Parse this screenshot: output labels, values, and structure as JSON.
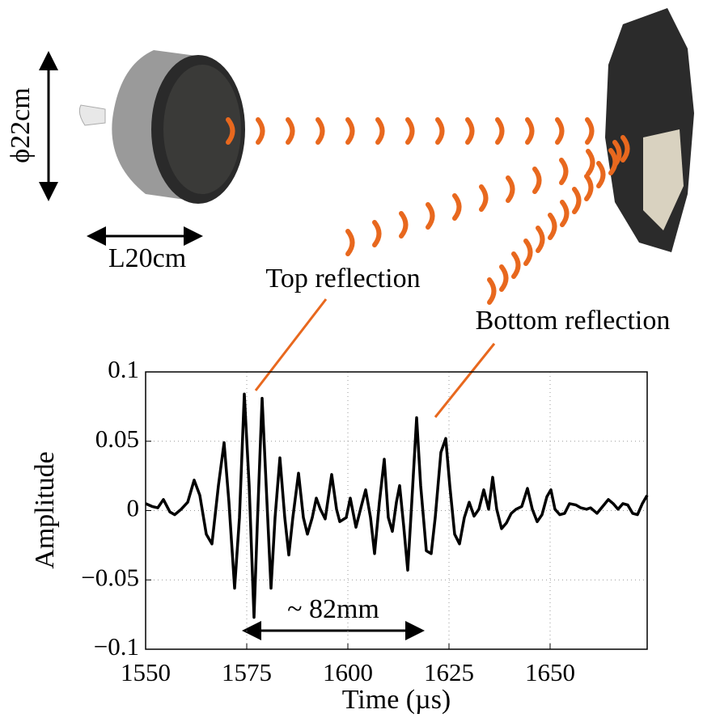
{
  "chart_data": {
    "type": "line",
    "xlabel": "Time (µs)",
    "ylabel": "Amplitude",
    "annotations": [
      "ϕ22cm",
      "L20cm",
      "Top reflection",
      "Bottom reflection",
      "~ 82mm"
    ],
    "xlim": [
      1550,
      1674
    ],
    "xticks": [
      1550,
      1575,
      1600,
      1625,
      1650
    ],
    "ylim": [
      -0.1,
      0.1
    ],
    "yticks": [
      0.1,
      0.05,
      0,
      {
        "value": -0.05,
        "label": "−0.05"
      },
      {
        "value": -0.1,
        "label": "−0.1"
      }
    ],
    "grid": true,
    "series": [
      {
        "name": "Amplitude",
        "color": "#000000",
        "x": [
          1550,
          1551.6,
          1553,
          1554.4,
          1556,
          1557.2,
          1558.8,
          1560.4,
          1562,
          1563.4,
          1565,
          1566.4,
          1568,
          1569.4,
          1570.6,
          1572,
          1573.2,
          1574.4,
          1575.6,
          1576.8,
          1577.6,
          1578.8,
          1580,
          1581,
          1582,
          1583.2,
          1584.4,
          1585.4,
          1586.4,
          1587.8,
          1589,
          1590,
          1591.2,
          1592.2,
          1593.2,
          1594.4,
          1596,
          1597.2,
          1598,
          1599.6,
          1600.6,
          1602,
          1603.4,
          1604.4,
          1605.6,
          1606.6,
          1607.8,
          1609,
          1610,
          1611,
          1612,
          1612.8,
          1613.8,
          1614.8,
          1615.8,
          1617,
          1618,
          1619.4,
          1620.6,
          1621.6,
          1623,
          1624.2,
          1625.2,
          1626.4,
          1627.6,
          1628.8,
          1630,
          1631.2,
          1632.4,
          1633.6,
          1634.8,
          1635.8,
          1636.8,
          1638,
          1639.2,
          1640.4,
          1641.6,
          1643,
          1644.4,
          1645.6,
          1646.8,
          1648,
          1649.2,
          1650.2,
          1651.2,
          1652.4,
          1653.6,
          1654.8,
          1656.4,
          1657.6,
          1659,
          1660,
          1661.6,
          1663,
          1664.4,
          1665.6,
          1666.8,
          1668,
          1669.2,
          1670.4,
          1671.6,
          1672.8,
          1674
        ],
        "values": [
          0.005,
          0.003,
          0.002,
          0.008,
          -0.001,
          -0.003,
          0.001,
          0.006,
          0.022,
          0.011,
          -0.017,
          -0.024,
          0.018,
          0.049,
          0.006,
          -0.056,
          -0.005,
          0.084,
          0.018,
          -0.077,
          -0.011,
          0.081,
          0.006,
          -0.056,
          -0.005,
          0.038,
          -0.005,
          -0.032,
          -0.005,
          0.027,
          -0.005,
          -0.017,
          -0.005,
          0.009,
          0.001,
          -0.006,
          0.026,
          0.001,
          -0.008,
          -0.005,
          0.009,
          -0.012,
          0.004,
          0.015,
          -0.005,
          -0.031,
          0.006,
          0.037,
          -0.005,
          -0.015,
          0.006,
          0.018,
          -0.011,
          -0.043,
          0.006,
          0.067,
          0.018,
          -0.029,
          -0.031,
          -0.005,
          0.042,
          0.052,
          0.018,
          -0.017,
          -0.024,
          -0.005,
          0.006,
          -0.004,
          0.001,
          0.015,
          0.001,
          0.024,
          0.001,
          -0.013,
          -0.009,
          -0.002,
          0.001,
          0.003,
          0.016,
          0.001,
          -0.008,
          -0.003,
          0.01,
          0.015,
          0.001,
          -0.003,
          -0.002,
          0.005,
          0.004,
          0.002,
          0.001,
          0.002,
          -0.002,
          0.003,
          0.008,
          0.005,
          0.001,
          0.005,
          0.004,
          -0.002,
          -0.003,
          0.005,
          0.011
        ]
      }
    ]
  }
}
